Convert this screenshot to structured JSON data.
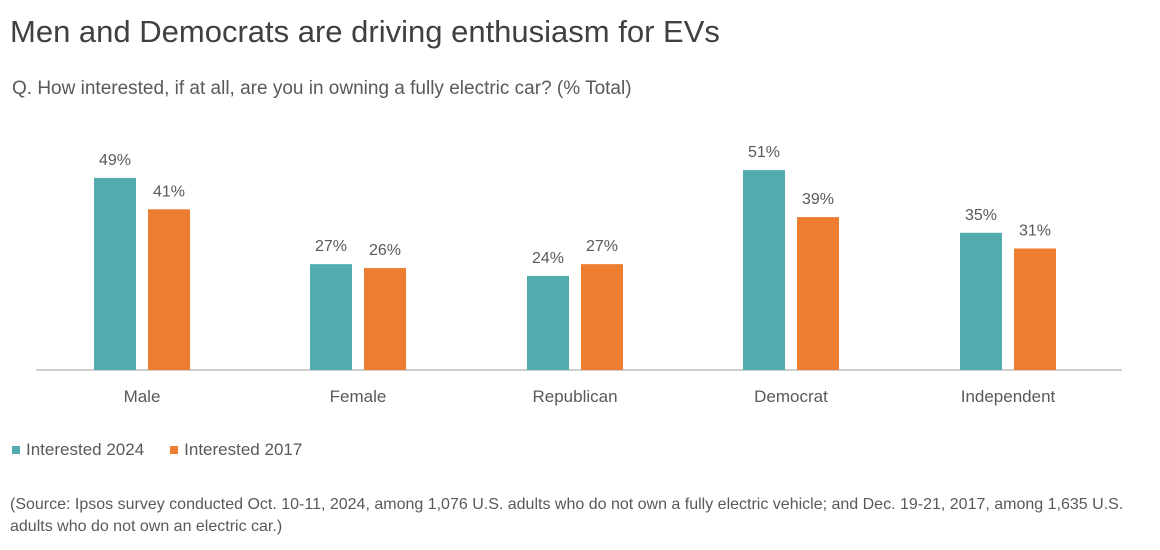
{
  "header": {
    "title": "Men and Democrats are driving enthusiasm for EVs",
    "subtitle": "Q. How interested, if at all, are you in owning a fully electric car? (% Total)"
  },
  "source": "(Source: Ipsos survey conducted Oct. 10-11, 2024, among 1,076 U.S. adults who do not own a fully electric vehicle; and Dec. 19-21, 2017, among 1,635 U.S. adults who do not own an electric car.)",
  "colors": {
    "series2024": "#52ACAD",
    "series2017": "#ED7D31",
    "axis": "#BFBFBF"
  },
  "chart_data": {
    "type": "bar",
    "title": "Men and Democrats are driving enthusiasm for EVs",
    "subtitle": "Q. How interested, if at all, are you in owning a fully electric car? (% Total)",
    "categories": [
      "Male",
      "Female",
      "Republican",
      "Democrat",
      "Independent"
    ],
    "series": [
      {
        "name": "Interested 2024",
        "values": [
          49,
          27,
          24,
          51,
          35
        ],
        "labels": [
          "49%",
          "27%",
          "24%",
          "51%",
          "35%"
        ]
      },
      {
        "name": "Interested 2017",
        "values": [
          41,
          26,
          27,
          39,
          31
        ],
        "labels": [
          "41%",
          "26%",
          "27%",
          "39%",
          "31%"
        ]
      }
    ],
    "ylim": [
      0,
      60
    ],
    "grid": false,
    "legend": "bottom-left"
  }
}
